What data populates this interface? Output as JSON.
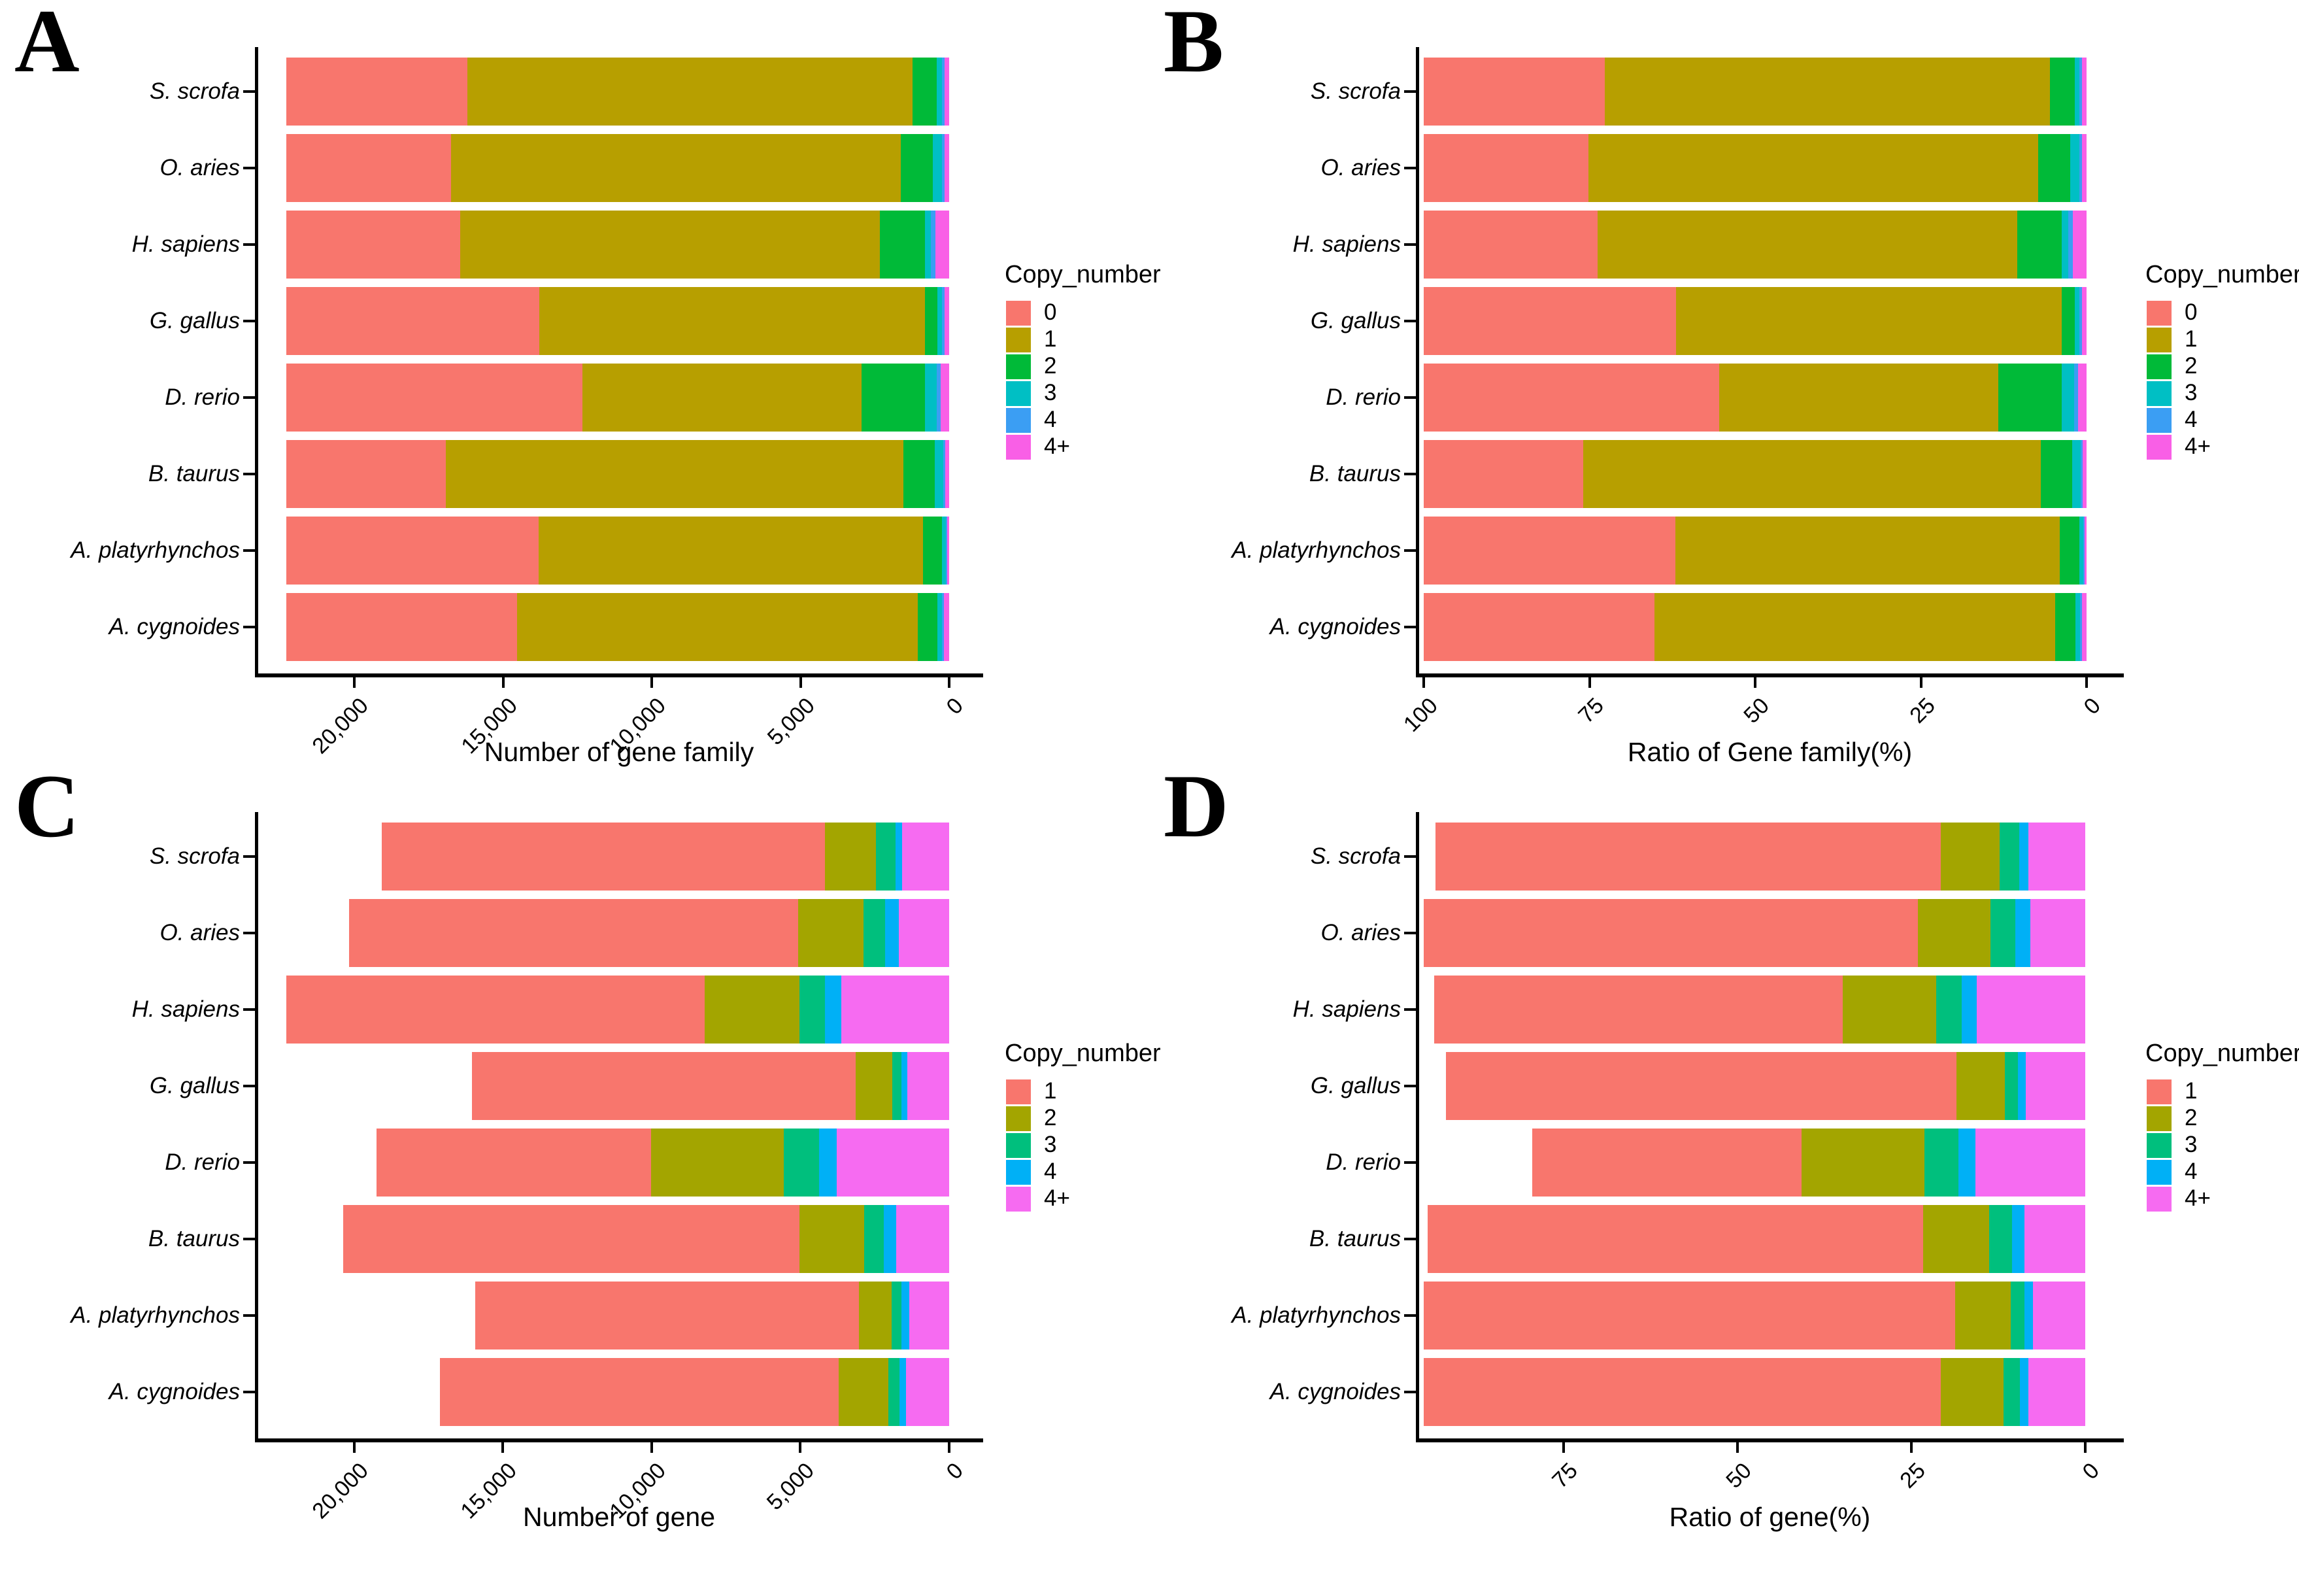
{
  "figure": {
    "background": "#ffffff",
    "text_color": "#000000",
    "axis_color": "#000000",
    "panel_letters": [
      "A",
      "B",
      "C",
      "D"
    ]
  },
  "chart_data": [
    {
      "panel": "A",
      "type": "bar",
      "stacked": true,
      "orientation": "horizontal",
      "axis_reversed": true,
      "xlabel": "Number of gene family",
      "legend_title": "Copy_number",
      "legend_position": "right",
      "classes": [
        "0",
        "1",
        "2",
        "3",
        "4",
        "4+"
      ],
      "colors": [
        "#F8766D",
        "#B79F00",
        "#00BA38",
        "#00BFC4",
        "#3B9EF3",
        "#F95FE6"
      ],
      "species": [
        "S. scrofa",
        "O. aries",
        "H. sapiens",
        "G. gallus",
        "D. rerio",
        "B. taurus",
        "A. platyrhynchos",
        "A. cygnoides"
      ],
      "x_tick_labels": [
        "20,000",
        "15,000",
        "10,000",
        "5,000",
        "0"
      ],
      "x_tick_values": [
        20000,
        15000,
        10000,
        5000,
        0
      ],
      "xlim": [
        22290,
        0
      ],
      "values": [
        [
          6080,
          14980,
          820,
          160,
          90,
          160
        ],
        [
          5550,
          15120,
          1060,
          310,
          90,
          160
        ],
        [
          5850,
          14100,
          1520,
          210,
          150,
          460
        ],
        [
          8500,
          12970,
          420,
          160,
          80,
          160
        ],
        [
          9950,
          9390,
          2140,
          400,
          130,
          280
        ],
        [
          5370,
          15390,
          1040,
          290,
          70,
          130
        ],
        [
          8480,
          12920,
          640,
          130,
          50,
          70
        ],
        [
          7750,
          13490,
          660,
          150,
          60,
          180
        ]
      ]
    },
    {
      "panel": "B",
      "type": "bar",
      "stacked": true,
      "orientation": "horizontal",
      "axis_reversed": true,
      "xlabel": "Ratio of Gene family(%)",
      "legend_title": "Copy_number",
      "legend_position": "right",
      "classes": [
        "0",
        "1",
        "2",
        "3",
        "4",
        "4+"
      ],
      "colors": [
        "#F8766D",
        "#B79F00",
        "#00BA38",
        "#00BFC4",
        "#3B9EF3",
        "#F95FE6"
      ],
      "species": [
        "S. scrofa",
        "O. aries",
        "H. sapiens",
        "G. gallus",
        "D. rerio",
        "B. taurus",
        "A. platyrhynchos",
        "A. cygnoides"
      ],
      "x_tick_labels": [
        "100",
        "75",
        "50",
        "25",
        "0"
      ],
      "x_tick_values": [
        100,
        75,
        50,
        25,
        0
      ],
      "xlim": [
        100,
        0
      ],
      "values": [
        [
          27.3,
          67.2,
          3.7,
          0.7,
          0.4,
          0.7
        ],
        [
          24.9,
          67.8,
          4.8,
          1.4,
          0.4,
          0.7
        ],
        [
          26.2,
          63.3,
          6.8,
          0.9,
          0.7,
          2.1
        ],
        [
          38.1,
          58.2,
          1.9,
          0.7,
          0.4,
          0.7
        ],
        [
          44.6,
          42.1,
          9.6,
          1.8,
          0.6,
          1.3
        ],
        [
          24.1,
          69.0,
          4.7,
          1.3,
          0.3,
          0.6
        ],
        [
          38.0,
          58.0,
          2.9,
          0.6,
          0.2,
          0.3
        ],
        [
          34.8,
          60.5,
          3.0,
          0.7,
          0.3,
          0.7
        ]
      ]
    },
    {
      "panel": "C",
      "type": "bar",
      "stacked": true,
      "orientation": "horizontal",
      "axis_reversed": true,
      "xlabel": "Number of gene",
      "legend_title": "Copy_number",
      "legend_position": "right",
      "classes": [
        "1",
        "2",
        "3",
        "4",
        "4+"
      ],
      "colors": [
        "#F8766D",
        "#A3A500",
        "#00BF7D",
        "#00B0F6",
        "#F66BF1"
      ],
      "species": [
        "S. scrofa",
        "O. aries",
        "H. sapiens",
        "G. gallus",
        "D. rerio",
        "B. taurus",
        "A. platyrhynchos",
        "A. cygnoides"
      ],
      "x_tick_labels": [
        "20,000",
        "15,000",
        "10,000",
        "5,000",
        "0"
      ],
      "x_tick_values": [
        20000,
        15000,
        10000,
        5000,
        0
      ],
      "xlim": [
        22280,
        0
      ],
      "values": [
        [
          14900,
          1700,
          660,
          230,
          1580
        ],
        [
          15100,
          2190,
          730,
          470,
          1680
        ],
        [
          14070,
          3180,
          860,
          550,
          3620
        ],
        [
          12900,
          1220,
          310,
          200,
          1410
        ],
        [
          9220,
          4470,
          1170,
          600,
          3780
        ],
        [
          15350,
          2170,
          670,
          400,
          1790
        ],
        [
          12900,
          1110,
          330,
          250,
          1350
        ],
        [
          13390,
          1680,
          360,
          240,
          1440
        ]
      ]
    },
    {
      "panel": "D",
      "type": "bar",
      "stacked": true,
      "orientation": "horizontal",
      "axis_reversed": true,
      "xlabel": "Ratio of gene(%)",
      "legend_title": "Copy_number",
      "legend_position": "right",
      "classes": [
        "1",
        "2",
        "3",
        "4",
        "4+"
      ],
      "colors": [
        "#F8766D",
        "#A3A500",
        "#00BF7D",
        "#00B0F6",
        "#F66BF1"
      ],
      "species": [
        "S. scrofa",
        "O. aries",
        "H. sapiens",
        "G. gallus",
        "D. rerio",
        "B. taurus",
        "A. platyrhynchos",
        "A. cygnoides"
      ],
      "x_tick_labels": [
        "75",
        "50",
        "25",
        "0"
      ],
      "x_tick_values": [
        75,
        50,
        25,
        0
      ],
      "xlim": [
        95.1,
        0
      ],
      "values": [
        [
          72.6,
          8.5,
          2.8,
          1.3,
          8.2
        ],
        [
          71.0,
          10.5,
          3.5,
          2.2,
          7.9
        ],
        [
          58.7,
          13.5,
          3.6,
          2.2,
          15.6
        ],
        [
          73.4,
          6.9,
          1.9,
          1.1,
          8.6
        ],
        [
          38.7,
          17.7,
          4.9,
          2.4,
          15.8
        ],
        [
          71.2,
          9.5,
          3.3,
          1.8,
          8.7
        ],
        [
          76.4,
          8.0,
          2.0,
          1.2,
          7.5
        ],
        [
          74.3,
          9.1,
          2.3,
          1.2,
          8.2
        ]
      ]
    }
  ]
}
